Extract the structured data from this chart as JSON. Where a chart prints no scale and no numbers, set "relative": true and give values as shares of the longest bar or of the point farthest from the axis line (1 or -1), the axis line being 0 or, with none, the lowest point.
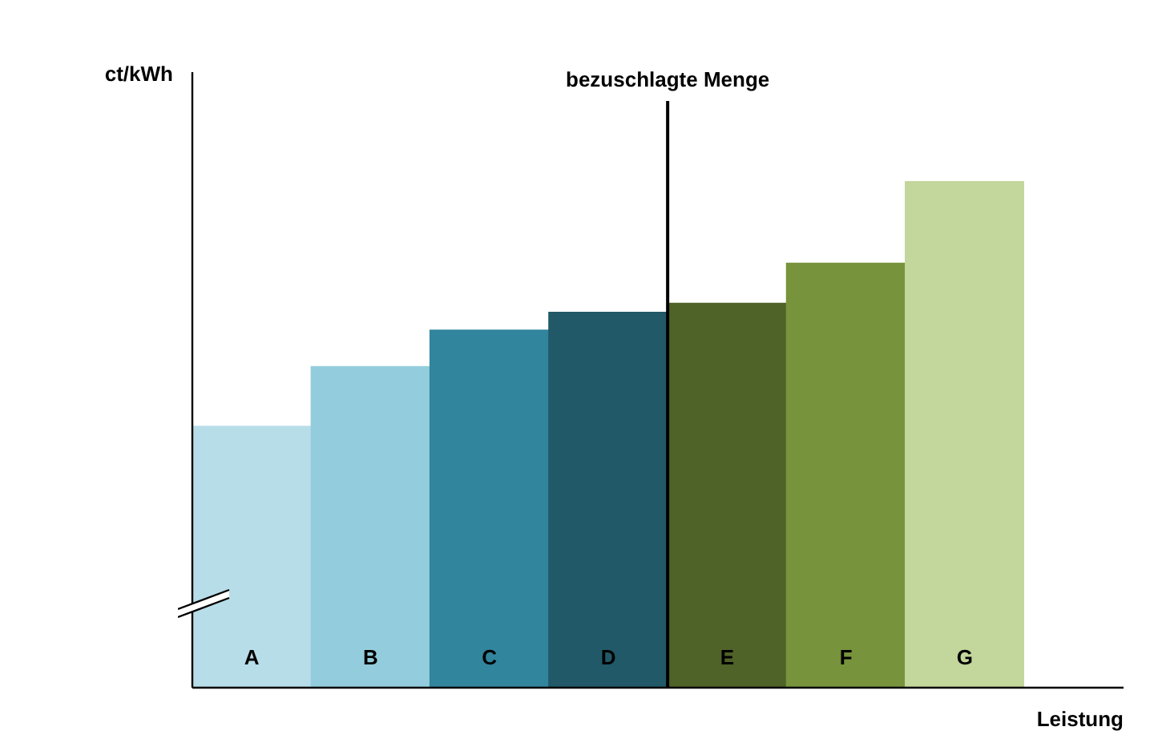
{
  "chart_data": {
    "type": "bar",
    "relative": true,
    "xlabel": "Leistung",
    "ylabel": "ct/kWh",
    "categories": [
      "A",
      "B",
      "C",
      "D",
      "E",
      "F",
      "G"
    ],
    "values": [
      0.516,
      0.634,
      0.706,
      0.741,
      0.759,
      0.838,
      1
    ],
    "colors": [
      "#b7dde8",
      "#93cddd",
      "#31859c",
      "#215968",
      "#4f6228",
      "#77933c",
      "#c3d69b"
    ],
    "annotations": [
      "bezuschlagte Menge"
    ],
    "grid": false,
    "legend": false
  }
}
